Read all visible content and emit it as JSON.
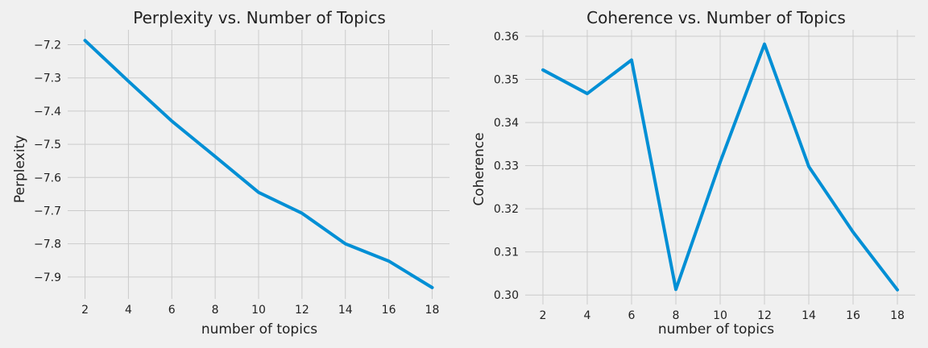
{
  "chart_data": [
    {
      "type": "line",
      "title": "Perplexity vs. Number of Topics",
      "xlabel": "number of topics",
      "ylabel": "Perplexity",
      "x": [
        2,
        4,
        6,
        8,
        10,
        12,
        14,
        16,
        18
      ],
      "xticks": [
        2,
        4,
        6,
        8,
        10,
        12,
        14,
        16,
        18
      ],
      "xlim": [
        1.2,
        18.8
      ],
      "yticks": [
        -7.2,
        -7.3,
        -7.4,
        -7.5,
        -7.6,
        -7.7,
        -7.8,
        -7.9
      ],
      "yticklabels": [
        "−7.2",
        "−7.3",
        "−7.4",
        "−7.5",
        "−7.6",
        "−7.7",
        "−7.8",
        "−7.9"
      ],
      "ylim": [
        -7.966,
        -7.155
      ],
      "grid": true,
      "series": [
        {
          "values": [
            -7.187,
            -7.31,
            -7.43,
            -7.537,
            -7.645,
            -7.708,
            -7.8,
            -7.852,
            -7.932
          ],
          "color": "#008fd5"
        }
      ]
    },
    {
      "type": "line",
      "title": "Coherence vs. Number of Topics",
      "xlabel": "number of topics",
      "ylabel": "Coherence",
      "x": [
        2,
        4,
        6,
        8,
        10,
        12,
        14,
        16,
        18
      ],
      "xticks": [
        2,
        4,
        6,
        8,
        10,
        12,
        14,
        16,
        18
      ],
      "xlim": [
        1.2,
        18.8
      ],
      "yticks": [
        0.3,
        0.31,
        0.32,
        0.33,
        0.34,
        0.35,
        0.36
      ],
      "yticklabels": [
        "0.30",
        "0.31",
        "0.32",
        "0.33",
        "0.34",
        "0.35",
        "0.36"
      ],
      "ylim": [
        0.2978,
        0.3615
      ],
      "grid": true,
      "series": [
        {
          "values": [
            0.3522,
            0.3467,
            0.3545,
            0.3013,
            0.3308,
            0.3582,
            0.3298,
            0.3146,
            0.3012
          ],
          "color": "#008fd5"
        }
      ]
    }
  ]
}
